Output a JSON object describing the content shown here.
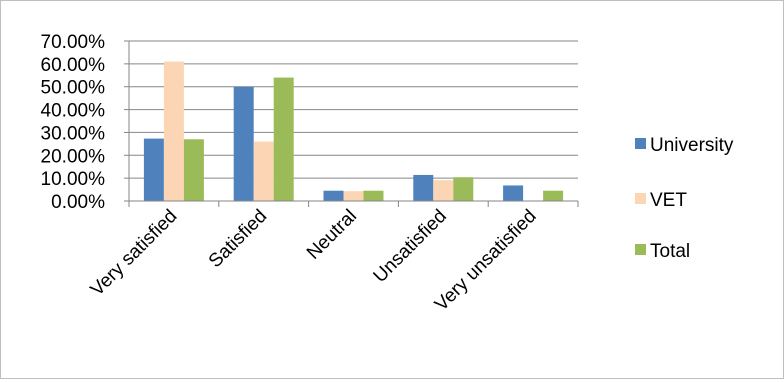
{
  "chart_data": {
    "type": "bar",
    "categories": [
      "Very satisfied",
      "Satisfied",
      "Neutral",
      "Unsatisfied",
      "Very unsatisfied"
    ],
    "series": [
      {
        "name": "University",
        "color": "#4F81BD",
        "values": [
          0.273,
          0.5,
          0.045,
          0.114,
          0.068
        ]
      },
      {
        "name": "VET",
        "color": "#FCD5B5",
        "values": [
          0.61,
          0.26,
          0.043,
          0.091,
          0.0
        ]
      },
      {
        "name": "Total",
        "color": "#9BBB59",
        "values": [
          0.27,
          0.54,
          0.045,
          0.104,
          0.045
        ]
      }
    ],
    "yticks": [
      "0.00%",
      "10.00%",
      "20.00%",
      "30.00%",
      "40.00%",
      "50.00%",
      "60.00%",
      "70.00%"
    ],
    "ylim": [
      0,
      0.7
    ],
    "grid": true,
    "legend_position": "right",
    "title": "",
    "xlabel": "",
    "ylabel": ""
  }
}
